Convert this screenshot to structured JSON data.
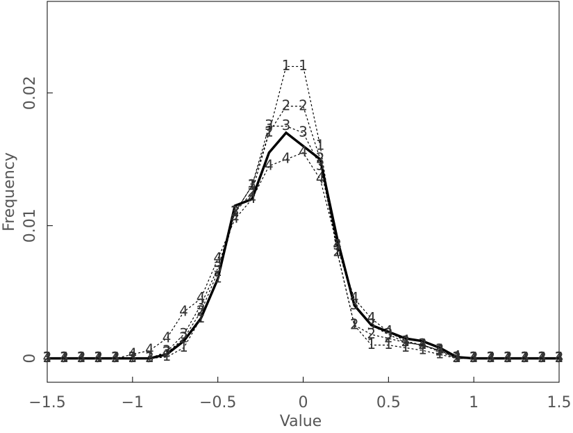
{
  "chart_data": {
    "type": "line",
    "x": [
      -1.5,
      -1.4,
      -1.3,
      -1.2,
      -1.1,
      -1.0,
      -0.9,
      -0.8,
      -0.7,
      -0.6,
      -0.5,
      -0.4,
      -0.3,
      -0.2,
      -0.1,
      0,
      0.1,
      0.2,
      0.3,
      0.4,
      0.5,
      0.6,
      0.7,
      0.8,
      0.9,
      1.0,
      1.1,
      1.2,
      1.3,
      1.4,
      1.5
    ],
    "series": [
      {
        "color": "#000000",
        "style": "solid",
        "values": [
          0,
          0,
          0,
          0,
          0,
          0,
          0,
          0.0003,
          0.0013,
          0.003,
          0.006,
          0.0115,
          0.012,
          0.0155,
          0.017,
          0.016,
          0.015,
          0.009,
          0.004,
          0.0025,
          0.002,
          0.0015,
          0.0013,
          0.0008,
          0.0001,
          0,
          0,
          0,
          0,
          0,
          0
        ]
      },
      {
        "name": "1",
        "color": "#000000",
        "style": "dotted",
        "values": [
          0,
          0,
          0,
          0,
          0,
          0,
          0,
          0.0001,
          0.0008,
          0.003,
          0.006,
          0.011,
          0.013,
          0.017,
          0.022,
          0.022,
          0.016,
          0.008,
          0.0025,
          0.001,
          0.001,
          0.0008,
          0.0006,
          0.0003,
          0,
          0,
          0,
          0,
          0,
          0,
          0
        ]
      },
      {
        "name": "2",
        "color": "#000000",
        "style": "dotted",
        "values": [
          0,
          0,
          0,
          0,
          0,
          0,
          0,
          0.0004,
          0.0015,
          0.0035,
          0.0065,
          0.011,
          0.0125,
          0.017,
          0.019,
          0.019,
          0.015,
          0.008,
          0.0025,
          0.0018,
          0.0015,
          0.0012,
          0.001,
          0.0005,
          0,
          0,
          0,
          0,
          0,
          0,
          0
        ]
      },
      {
        "name": "3",
        "color": "#000000",
        "style": "dotted",
        "values": [
          0,
          0,
          0,
          0,
          0,
          0,
          0,
          0.0005,
          0.0018,
          0.004,
          0.0068,
          0.011,
          0.013,
          0.0175,
          0.0175,
          0.017,
          0.0145,
          0.0085,
          0.004,
          0.0025,
          0.0018,
          0.0012,
          0.001,
          0.0006,
          0,
          0,
          0,
          0,
          0,
          0,
          0
        ]
      },
      {
        "name": "4",
        "color": "#000000",
        "style": "dotted",
        "values": [
          0,
          0,
          0,
          0,
          0,
          0.0003,
          0.0006,
          0.0015,
          0.0035,
          0.0045,
          0.0075,
          0.0105,
          0.012,
          0.0145,
          0.015,
          0.0155,
          0.0135,
          0.0085,
          0.0045,
          0.003,
          0.002,
          0.0013,
          0.001,
          0.0006,
          0.0001,
          0,
          0,
          0,
          0,
          0,
          0
        ]
      }
    ],
    "x_label": "Value",
    "y_label": "Frequency",
    "xlim": [
      -1.5,
      1.5
    ],
    "xticks": [
      {
        "value": -1.5,
        "label": "−1.5"
      },
      {
        "value": -1,
        "label": "−1"
      },
      {
        "value": -0.5,
        "label": "−0.5"
      },
      0,
      0.5,
      1,
      1.5
    ],
    "ylim": [
      -0.0018,
      0.0269
    ],
    "yticks": [
      0,
      0.01,
      0.02
    ]
  }
}
